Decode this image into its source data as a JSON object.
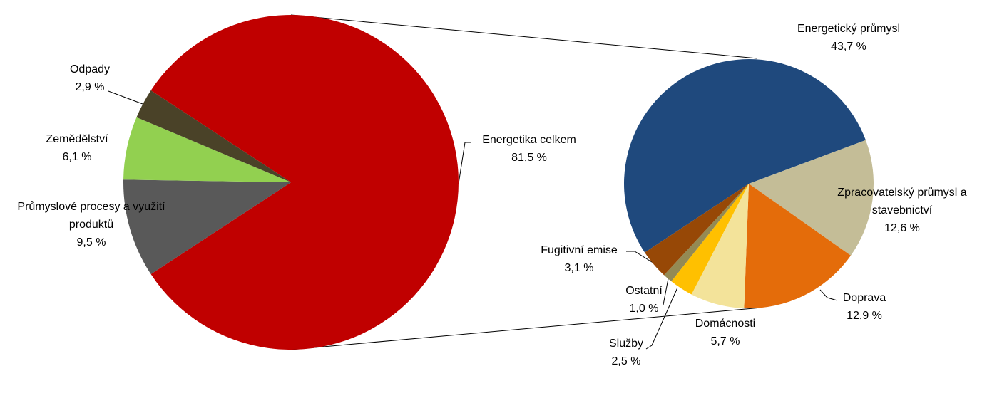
{
  "chart_data": [
    {
      "type": "pie",
      "categories": [
        "Energetika celkem",
        "Průmyslové procesy a využití produktů",
        "Zemědělství",
        "Odpady"
      ],
      "values": [
        81.5,
        9.5,
        6.1,
        2.9
      ],
      "value_labels": [
        "81,5 %",
        "9,5 %",
        "6,1 %",
        "2,9 %"
      ],
      "colors": [
        "#c00000",
        "#595959",
        "#92d050",
        "#4a4228"
      ]
    },
    {
      "type": "pie",
      "categories": [
        "Energetický průmysl",
        "Zpracovatelský průmysl a stavebnictví",
        "Doprava",
        "Domácnosti",
        "Služby",
        "Ostatní",
        "Fugitivní emise"
      ],
      "values": [
        43.7,
        12.6,
        12.9,
        5.7,
        2.5,
        1.0,
        3.1
      ],
      "value_labels": [
        "43,7 %",
        "12,6 %",
        "12,9 %",
        "5,7 %",
        "2,5 %",
        "1,0 %",
        "3,1 %"
      ],
      "colors": [
        "#1f497d",
        "#c4bd97",
        "#e46c0a",
        "#f3e39a",
        "#ffc000",
        "#948a54",
        "#974806"
      ]
    }
  ]
}
